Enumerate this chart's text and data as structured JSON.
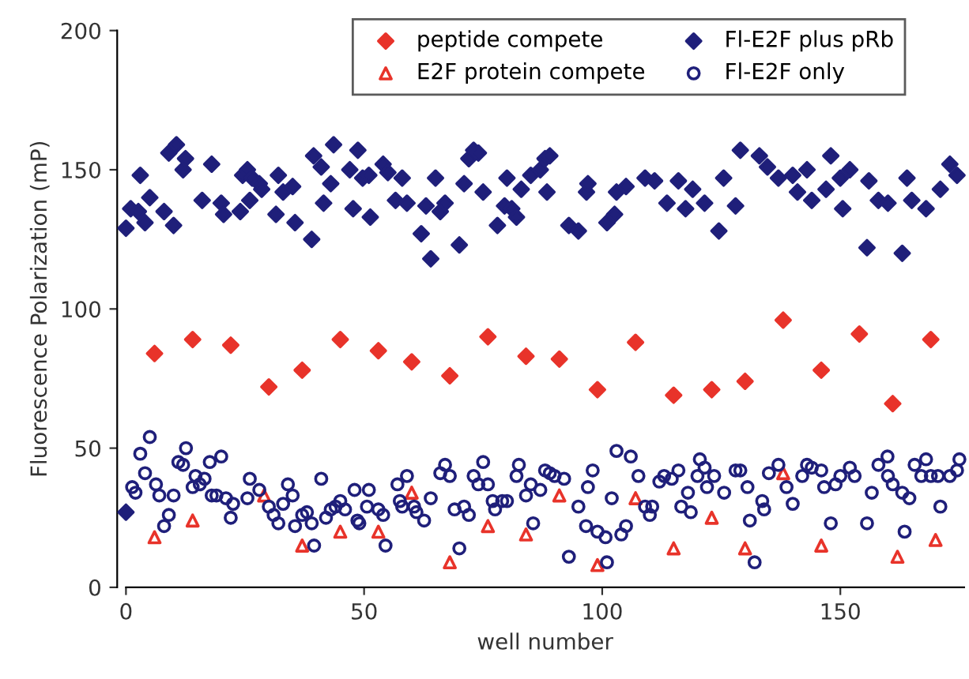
{
  "chart_data": {
    "type": "scatter",
    "xlabel": "well number",
    "ylabel": "Fluorescence Polarization (mP)",
    "xlim": [
      0,
      176
    ],
    "ylim": [
      0,
      200
    ],
    "xticks": [
      0,
      50,
      100,
      150
    ],
    "yticks": [
      0,
      50,
      100,
      150,
      200
    ],
    "grid": false,
    "legend": "top",
    "series": [
      {
        "name": "peptide compete",
        "color": "#e8332a",
        "marker": "diamond",
        "x": [
          6,
          14,
          22,
          30,
          37,
          45,
          53,
          60,
          68,
          76,
          84,
          91,
          99,
          107,
          115,
          123,
          130,
          138,
          146,
          154,
          161,
          169
        ],
        "values": [
          84,
          89,
          87,
          72,
          78,
          89,
          85,
          81,
          76,
          90,
          83,
          82,
          71,
          88,
          69,
          71,
          74,
          96,
          78,
          91,
          66,
          89
        ]
      },
      {
        "name": "E2F protein compete",
        "color": "#e8332a",
        "marker": "triangle",
        "x": [
          6,
          14,
          29,
          37,
          45,
          53,
          60,
          68,
          76,
          84,
          91,
          99,
          107,
          115,
          123,
          130,
          138,
          146,
          162,
          170
        ],
        "values": [
          18,
          24,
          33,
          15,
          20,
          20,
          34,
          9,
          22,
          19,
          33,
          8,
          32,
          14,
          25,
          14,
          41,
          15,
          11,
          17
        ]
      },
      {
        "name": "Fl-E2F plus pRb",
        "color": "#1f1f7a",
        "marker": "diamond",
        "x": [
          0,
          0,
          1,
          2.6,
          3,
          4,
          5,
          8,
          9,
          10,
          10.6,
          12,
          12.5,
          16,
          18,
          20,
          20.5,
          24,
          24.5,
          25.5,
          26,
          26.5,
          28,
          28.5,
          31.5,
          32,
          33,
          35,
          35.5,
          39,
          39.4,
          41,
          41.5,
          43,
          43.6,
          47,
          47.7,
          48.7,
          49.7,
          51,
          51.3,
          54,
          55,
          56.6,
          58,
          59,
          62,
          63,
          64,
          65,
          66,
          67,
          70,
          71,
          72,
          73,
          74,
          75,
          78,
          79.5,
          80,
          81,
          82,
          83,
          85,
          87,
          88,
          88.4,
          89,
          93,
          95,
          96.7,
          97,
          101,
          102.6,
          103,
          105,
          109,
          111,
          113.6,
          116,
          117.5,
          119,
          121.5,
          124.5,
          125.5,
          128,
          129,
          133,
          134.7,
          137,
          140,
          141,
          143,
          144,
          147,
          148,
          150,
          150.5,
          152,
          155.6,
          156,
          158,
          160,
          163,
          164,
          165,
          168,
          171,
          173,
          174.5
        ],
        "values": [
          27,
          129,
          136,
          135,
          148,
          131,
          140,
          135,
          156,
          130,
          159,
          150,
          154,
          139,
          152,
          138,
          134,
          135,
          148,
          150,
          139,
          147,
          145,
          143,
          134,
          148,
          142,
          144,
          131,
          125,
          155,
          151,
          138,
          145,
          159,
          150,
          136,
          157,
          147,
          148,
          133,
          152,
          149,
          139,
          147,
          138,
          127,
          137,
          118,
          147,
          135,
          138,
          123,
          145,
          154,
          157,
          156,
          142,
          130,
          137,
          147,
          136,
          133,
          143,
          148,
          150,
          154,
          142,
          155,
          130,
          128,
          142,
          145,
          131,
          134,
          142,
          144,
          147,
          146,
          138,
          146,
          136,
          143,
          138,
          128,
          147,
          137,
          157,
          155,
          151,
          147,
          148,
          142,
          150,
          139,
          143,
          155,
          147,
          136,
          150,
          122,
          146,
          139,
          138,
          120,
          147,
          139,
          136,
          143,
          152,
          148
        ]
      },
      {
        "name": "Fl-E2F only",
        "color": "#1f1f7a",
        "marker": "circle",
        "x": [
          1.3,
          2,
          3,
          4,
          5,
          6.3,
          7,
          8,
          9,
          10,
          11,
          12,
          12.6,
          14,
          14.6,
          15.5,
          16.5,
          17.6,
          18,
          19,
          20,
          21,
          22,
          22.5,
          25.5,
          26,
          28,
          30,
          31,
          32,
          33,
          34,
          35,
          35.5,
          37,
          38,
          39,
          39.5,
          41,
          42,
          43,
          44,
          45,
          46,
          48,
          48.6,
          49,
          50.6,
          51,
          53,
          54,
          54.5,
          57,
          57.5,
          58,
          59,
          60.5,
          61,
          62.6,
          64,
          66,
          67,
          68,
          69,
          70,
          71,
          72,
          73,
          74,
          75,
          76,
          77,
          77.5,
          79,
          80,
          82,
          82.5,
          84,
          85,
          85.5,
          87,
          88,
          89,
          90,
          92,
          93,
          95,
          96.6,
          97,
          98,
          99,
          100.7,
          101,
          102,
          103,
          104,
          105,
          106,
          107.6,
          109,
          110,
          110.5,
          112,
          113,
          114.6,
          116,
          116.6,
          118,
          118.6,
          120,
          120.5,
          121.5,
          122,
          123.5,
          125.6,
          128,
          129,
          130.5,
          131,
          132,
          133.6,
          134,
          135,
          137,
          138.7,
          140,
          142,
          143,
          144,
          146,
          146.6,
          148,
          149,
          150,
          152,
          153,
          155.6,
          156.6,
          158,
          159.9,
          160,
          161,
          163,
          163.5,
          164.5,
          165.6,
          167,
          168,
          169,
          170.5,
          171,
          173,
          174.5,
          175
        ],
        "values": [
          36,
          34,
          48,
          41,
          54,
          37,
          33,
          22,
          26,
          33,
          45,
          44,
          50,
          36,
          40,
          37,
          39,
          45,
          33,
          33,
          47,
          32,
          25,
          30,
          32,
          39,
          35,
          29,
          26,
          23,
          30,
          37,
          33,
          22,
          26,
          27,
          23,
          15,
          39,
          25,
          28,
          29,
          31,
          28,
          35,
          24,
          23,
          29,
          35,
          28,
          26,
          15,
          37,
          31,
          29,
          40,
          29,
          27,
          24,
          32,
          41,
          44,
          40,
          28,
          14,
          29,
          26,
          40,
          37,
          45,
          37,
          31,
          28,
          31,
          31,
          40,
          44,
          33,
          37,
          23,
          35,
          42,
          41,
          40,
          39,
          11,
          29,
          22,
          36,
          42,
          20,
          18,
          9,
          32,
          49,
          19,
          22,
          47,
          40,
          29,
          26,
          29,
          38,
          40,
          39,
          42,
          29,
          34,
          27,
          40,
          46,
          43,
          36,
          40,
          34,
          42,
          42,
          36,
          24,
          9,
          31,
          28,
          41,
          44,
          36,
          30,
          40,
          44,
          43,
          42,
          36,
          23,
          37,
          40,
          43,
          40,
          23,
          34,
          44,
          47,
          40,
          37,
          34,
          20,
          32,
          44,
          40,
          46,
          40,
          40,
          29,
          40,
          42,
          46
        ]
      }
    ]
  }
}
